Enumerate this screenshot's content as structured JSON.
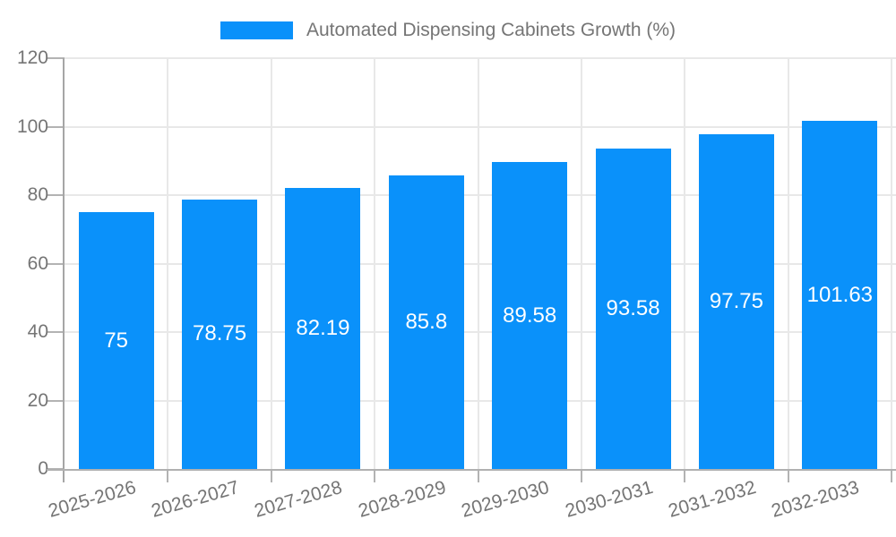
{
  "legend": {
    "label": "Automated Dispensing Cabinets Growth (%)"
  },
  "chart_data": {
    "type": "bar",
    "title": "",
    "legend_label": "Automated Dispensing Cabinets Growth (%)",
    "legend_position": "top",
    "categories": [
      "2025-2026",
      "2026-2027",
      "2027-2028",
      "2028-2029",
      "2029-2030",
      "2030-2031",
      "2031-2032",
      "2032-2033"
    ],
    "values": [
      75,
      78.75,
      82.19,
      85.8,
      89.58,
      93.58,
      97.75,
      101.63
    ],
    "value_labels": [
      "75",
      "78.75",
      "82.19",
      "85.8",
      "89.58",
      "93.58",
      "97.75",
      "101.63"
    ],
    "xlabel": "",
    "ylabel": "",
    "ylim": [
      0,
      120
    ],
    "yticks": [
      0,
      20,
      40,
      60,
      80,
      100,
      120
    ],
    "grid": true,
    "bar_color": "#0a91fa",
    "value_label_color": "#ffffff",
    "axis_text_color": "#757575"
  }
}
